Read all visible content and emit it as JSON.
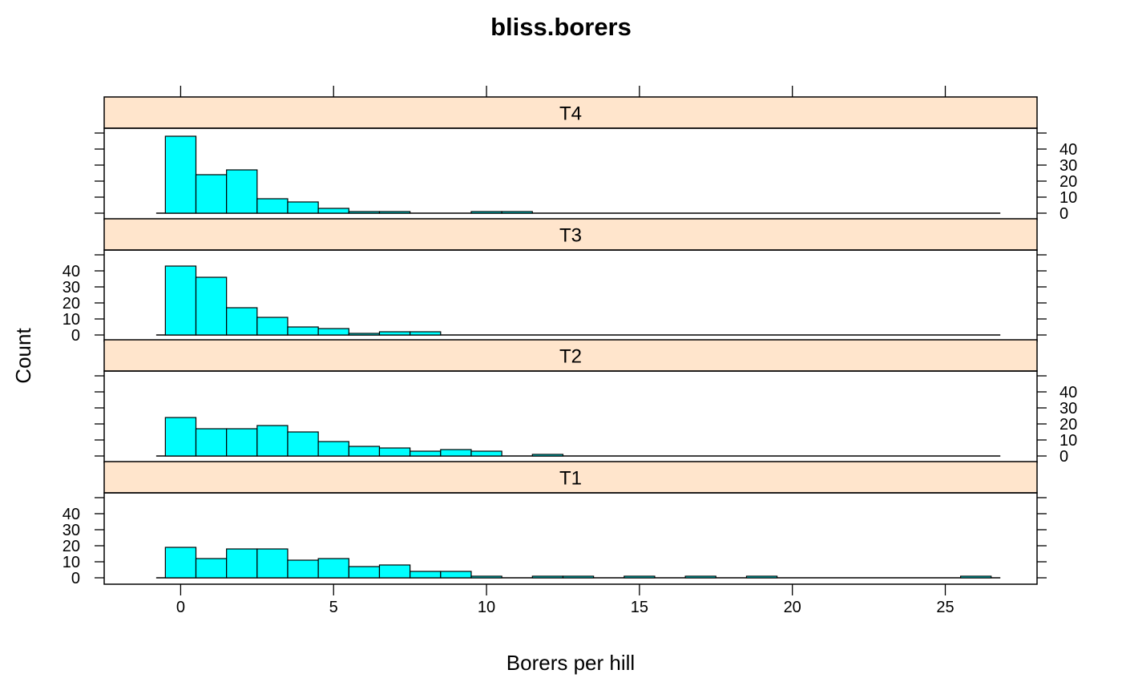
{
  "chart_data": {
    "type": "bar",
    "subtype": "histogram-trellis",
    "title": "bliss.borers",
    "xlabel": "Borers per hill",
    "ylabel": "Count",
    "xlim": [
      -2.5,
      28
    ],
    "ylim": [
      0,
      50
    ],
    "x_ticks": [
      0,
      5,
      10,
      15,
      20,
      25
    ],
    "y_ticks": [
      0,
      10,
      20,
      30,
      40
    ],
    "bin_width": 1,
    "bin_start": -0.5,
    "baseline_range": [
      -0.8,
      26.8
    ],
    "colors": {
      "bar_fill": "#00ffff",
      "bar_stroke": "#000000",
      "strip_fill": "#ffe5cc",
      "panel_stroke": "#000000"
    },
    "panels": [
      {
        "name": "T4",
        "y_labels_side": "right",
        "counts": [
          48,
          24,
          27,
          9,
          7,
          3,
          1,
          1,
          0,
          0,
          1,
          1
        ]
      },
      {
        "name": "T3",
        "y_labels_side": "left",
        "counts": [
          43,
          36,
          17,
          11,
          5,
          4,
          1,
          2,
          2
        ]
      },
      {
        "name": "T2",
        "y_labels_side": "right",
        "counts": [
          24,
          17,
          17,
          19,
          15,
          9,
          6,
          5,
          3,
          4,
          3,
          0,
          1
        ]
      },
      {
        "name": "T1",
        "y_labels_side": "left",
        "counts": [
          19,
          12,
          18,
          18,
          11,
          12,
          7,
          8,
          4,
          4,
          1,
          0,
          1,
          1,
          0,
          1,
          0,
          1,
          0,
          1,
          0,
          0,
          0,
          0,
          0,
          0,
          1
        ]
      }
    ]
  }
}
